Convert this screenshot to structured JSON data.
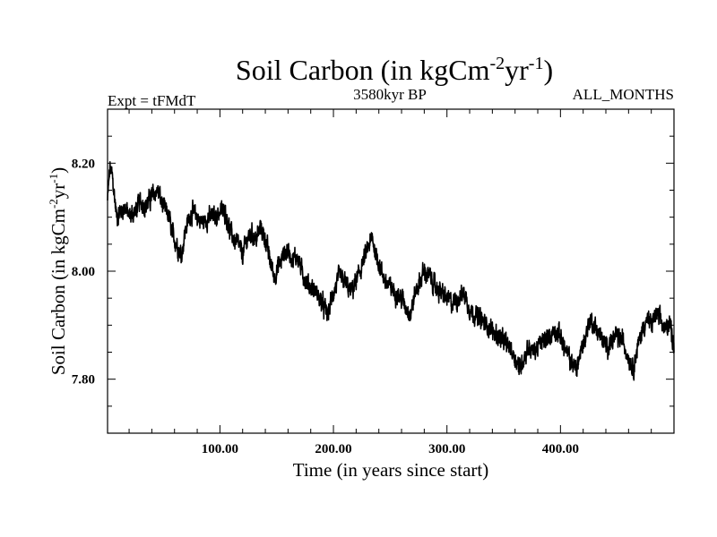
{
  "chart_data": {
    "type": "line",
    "title": {
      "main": "Soil Carbon (in kgCm",
      "exp1": "-2",
      "mid": "yr",
      "exp2": "-1",
      "close": ")"
    },
    "header": {
      "left": "Expt = tFMdT",
      "center": "3580kyr BP",
      "right": "ALL_MONTHS"
    },
    "xlabel": "Time (in years since start)",
    "ylabel": {
      "main": "Soil Carbon (in kgCm",
      "exp1": "-2",
      "mid": "yr",
      "exp2": "-1",
      "close": ")"
    },
    "xlim": [
      1,
      500
    ],
    "ylim": [
      7.7,
      8.3
    ],
    "xticks": [
      100,
      200,
      300,
      400
    ],
    "xtick_labels": [
      "100.00",
      "200.00",
      "300.00",
      "400.00"
    ],
    "yticks": [
      7.8,
      8.0,
      8.2
    ],
    "ytick_labels": [
      "7.80",
      "8.00",
      "8.20"
    ],
    "x_minor_step": 20,
    "y_minor_step": 0.05,
    "anchors": [
      [
        1,
        8.13
      ],
      [
        3,
        8.19
      ],
      [
        5,
        8.18
      ],
      [
        7,
        8.14
      ],
      [
        9,
        8.1
      ],
      [
        12,
        8.11
      ],
      [
        16,
        8.12
      ],
      [
        20,
        8.1
      ],
      [
        25,
        8.11
      ],
      [
        30,
        8.13
      ],
      [
        35,
        8.12
      ],
      [
        40,
        8.14
      ],
      [
        45,
        8.15
      ],
      [
        50,
        8.12
      ],
      [
        55,
        8.1
      ],
      [
        58,
        8.07
      ],
      [
        62,
        8.05
      ],
      [
        66,
        8.03
      ],
      [
        70,
        8.08
      ],
      [
        75,
        8.11
      ],
      [
        80,
        8.1
      ],
      [
        85,
        8.09
      ],
      [
        90,
        8.1
      ],
      [
        95,
        8.1
      ],
      [
        100,
        8.11
      ],
      [
        105,
        8.11
      ],
      [
        108,
        8.08
      ],
      [
        112,
        8.06
      ],
      [
        116,
        8.05
      ],
      [
        120,
        8.03
      ],
      [
        124,
        8.06
      ],
      [
        128,
        8.07
      ],
      [
        132,
        8.06
      ],
      [
        136,
        8.08
      ],
      [
        140,
        8.06
      ],
      [
        144,
        8.02
      ],
      [
        148,
        7.99
      ],
      [
        152,
        8.01
      ],
      [
        156,
        8.03
      ],
      [
        160,
        8.04
      ],
      [
        164,
        8.02
      ],
      [
        168,
        8.03
      ],
      [
        172,
        8.0
      ],
      [
        176,
        7.98
      ],
      [
        180,
        7.97
      ],
      [
        185,
        7.96
      ],
      [
        190,
        7.94
      ],
      [
        195,
        7.92
      ],
      [
        200,
        7.96
      ],
      [
        205,
        7.99
      ],
      [
        210,
        7.98
      ],
      [
        215,
        7.96
      ],
      [
        220,
        7.98
      ],
      [
        225,
        8.01
      ],
      [
        230,
        8.04
      ],
      [
        234,
        8.06
      ],
      [
        238,
        8.03
      ],
      [
        242,
        8.0
      ],
      [
        246,
        7.98
      ],
      [
        250,
        7.97
      ],
      [
        255,
        7.96
      ],
      [
        260,
        7.95
      ],
      [
        265,
        7.93
      ],
      [
        268,
        7.92
      ],
      [
        272,
        7.96
      ],
      [
        276,
        7.98
      ],
      [
        280,
        8.0
      ],
      [
        285,
        7.99
      ],
      [
        290,
        7.97
      ],
      [
        295,
        7.96
      ],
      [
        300,
        7.95
      ],
      [
        305,
        7.94
      ],
      [
        310,
        7.95
      ],
      [
        315,
        7.96
      ],
      [
        320,
        7.93
      ],
      [
        325,
        7.92
      ],
      [
        330,
        7.91
      ],
      [
        335,
        7.9
      ],
      [
        340,
        7.89
      ],
      [
        345,
        7.88
      ],
      [
        350,
        7.87
      ],
      [
        355,
        7.86
      ],
      [
        360,
        7.84
      ],
      [
        364,
        7.82
      ],
      [
        368,
        7.84
      ],
      [
        372,
        7.86
      ],
      [
        376,
        7.85
      ],
      [
        380,
        7.86
      ],
      [
        385,
        7.87
      ],
      [
        390,
        7.88
      ],
      [
        395,
        7.89
      ],
      [
        400,
        7.88
      ],
      [
        405,
        7.85
      ],
      [
        410,
        7.83
      ],
      [
        414,
        7.82
      ],
      [
        418,
        7.85
      ],
      [
        422,
        7.88
      ],
      [
        426,
        7.91
      ],
      [
        430,
        7.9
      ],
      [
        435,
        7.88
      ],
      [
        440,
        7.86
      ],
      [
        445,
        7.87
      ],
      [
        450,
        7.88
      ],
      [
        455,
        7.87
      ],
      [
        460,
        7.84
      ],
      [
        464,
        7.82
      ],
      [
        468,
        7.86
      ],
      [
        472,
        7.89
      ],
      [
        476,
        7.91
      ],
      [
        480,
        7.9
      ],
      [
        484,
        7.92
      ],
      [
        488,
        7.91
      ],
      [
        492,
        7.89
      ],
      [
        496,
        7.91
      ],
      [
        500,
        7.86
      ]
    ],
    "noise_amplitude": 0.012,
    "samples_per_year": 6,
    "line_color": "#000000"
  }
}
